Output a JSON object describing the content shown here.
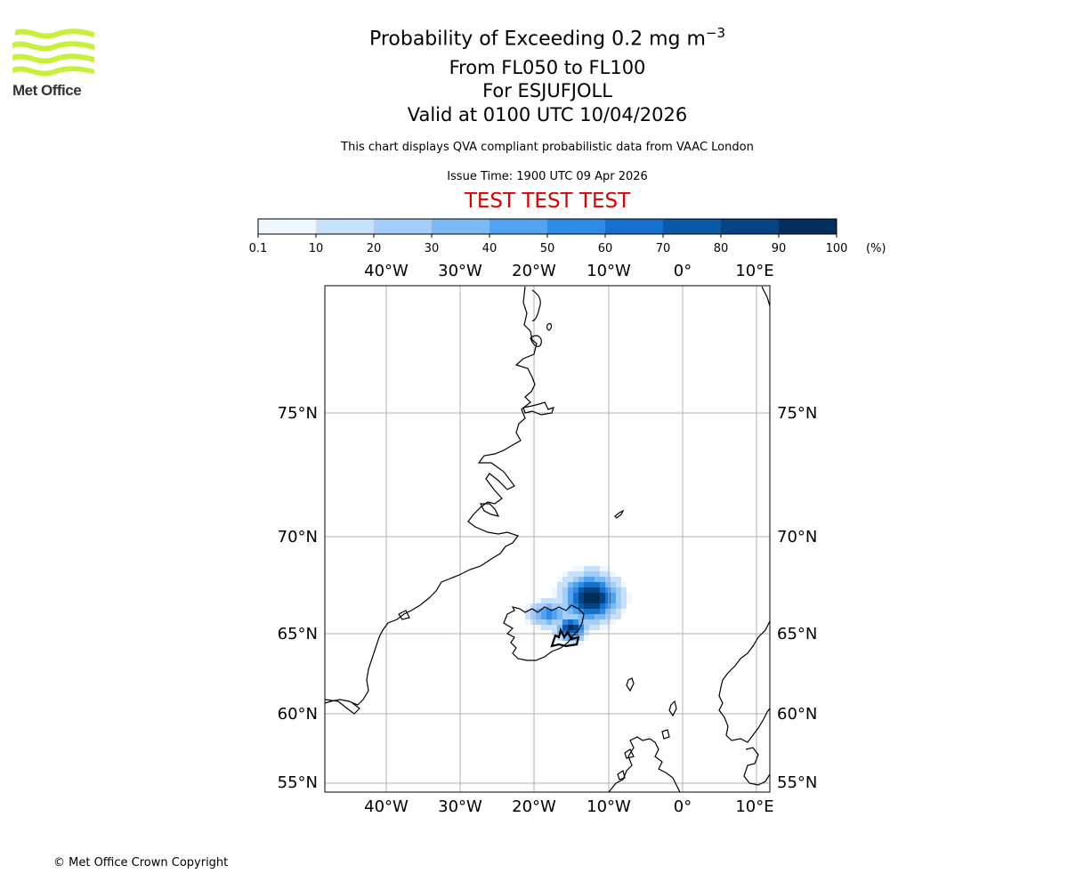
{
  "header": {
    "logo_text": "Met Office",
    "title_main": "Probability of Exceeding 0.2 mg m",
    "title_exponent": "−3",
    "level_range": "From FL050 to FL100",
    "volcano": "For ESJUFJOLL",
    "valid_time": "Valid at 0100 UTC 10/04/2026",
    "description": "This chart displays QVA compliant probabilistic data from VAAC London",
    "issue_time": "Issue Time: 1900 UTC 09 Apr 2026",
    "test_banner": "TEST TEST TEST"
  },
  "colorbar": {
    "ticks": [
      "0.1",
      "10",
      "20",
      "30",
      "40",
      "50",
      "60",
      "70",
      "80",
      "90",
      "100"
    ],
    "unit": "(%)",
    "colors": [
      "#eef6fe",
      "#c7e1fa",
      "#a4cdf7",
      "#7ab9f4",
      "#51a2f1",
      "#2d8ae6",
      "#1470cc",
      "#0a58a8",
      "#064383",
      "#022e5c"
    ]
  },
  "map": {
    "lon_labels": [
      "40°W",
      "30°W",
      "20°W",
      "10°W",
      "0°",
      "10°E"
    ],
    "lat_labels": [
      "75°N",
      "70°N",
      "65°N",
      "60°N",
      "55°N"
    ],
    "grid_color": "#b0b0b0",
    "plume_max_percent": 100
  },
  "footer": {
    "copyright": "© Met Office Crown Copyright"
  }
}
